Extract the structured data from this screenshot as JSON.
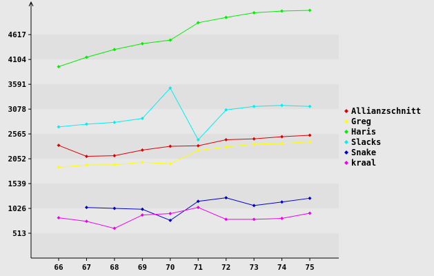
{
  "chart_data": {
    "type": "line",
    "title": "",
    "xlabel": "",
    "ylabel": "",
    "x": [
      66,
      67,
      68,
      69,
      70,
      71,
      72,
      73,
      74,
      75
    ],
    "x_tick_labels": [
      "66",
      "67",
      "68",
      "69",
      "70",
      "71",
      "72",
      "73",
      "74",
      "75"
    ],
    "y_ticks": [
      513,
      1026,
      1539,
      2052,
      2565,
      3078,
      3591,
      4104,
      4617
    ],
    "y_tick_labels": [
      "513",
      "1026",
      "1539",
      "2052",
      "2565",
      "3078",
      "3591",
      "4104",
      "4617"
    ],
    "ylim": [
      0,
      5190
    ],
    "grid": "horizontal bands",
    "legend_position": "right",
    "series": [
      {
        "name": "Allianzschnitt",
        "color": "#dd0000",
        "values": [
          2329,
          2102,
          2116,
          2232,
          2309,
          2321,
          2445,
          2463,
          2508,
          2538
        ]
      },
      {
        "name": "Greg",
        "color": "#ffff00",
        "values": [
          1877,
          1922,
          1928,
          1979,
          1949,
          2225,
          2298,
          2353,
          2366,
          2403
        ]
      },
      {
        "name": "Haris",
        "color": "#00ee00",
        "values": [
          3955,
          4149,
          4309,
          4431,
          4503,
          4863,
          4972,
          5068,
          5105,
          5118
        ]
      },
      {
        "name": "Slacks",
        "color": "#00eeee",
        "values": [
          2711,
          2767,
          2803,
          2885,
          3512,
          2443,
          3062,
          3134,
          3154,
          3134
        ]
      },
      {
        "name": "Snake",
        "color": "#0000cc",
        "values": [
          null,
          1046,
          1026,
          1008,
          779,
          1173,
          1246,
          1085,
          1158,
          1236
        ]
      },
      {
        "name": "kraal",
        "color": "#ee00ee",
        "values": [
          833,
          760,
          614,
          890,
          919,
          1046,
          800,
          800,
          820,
          927
        ]
      }
    ]
  }
}
